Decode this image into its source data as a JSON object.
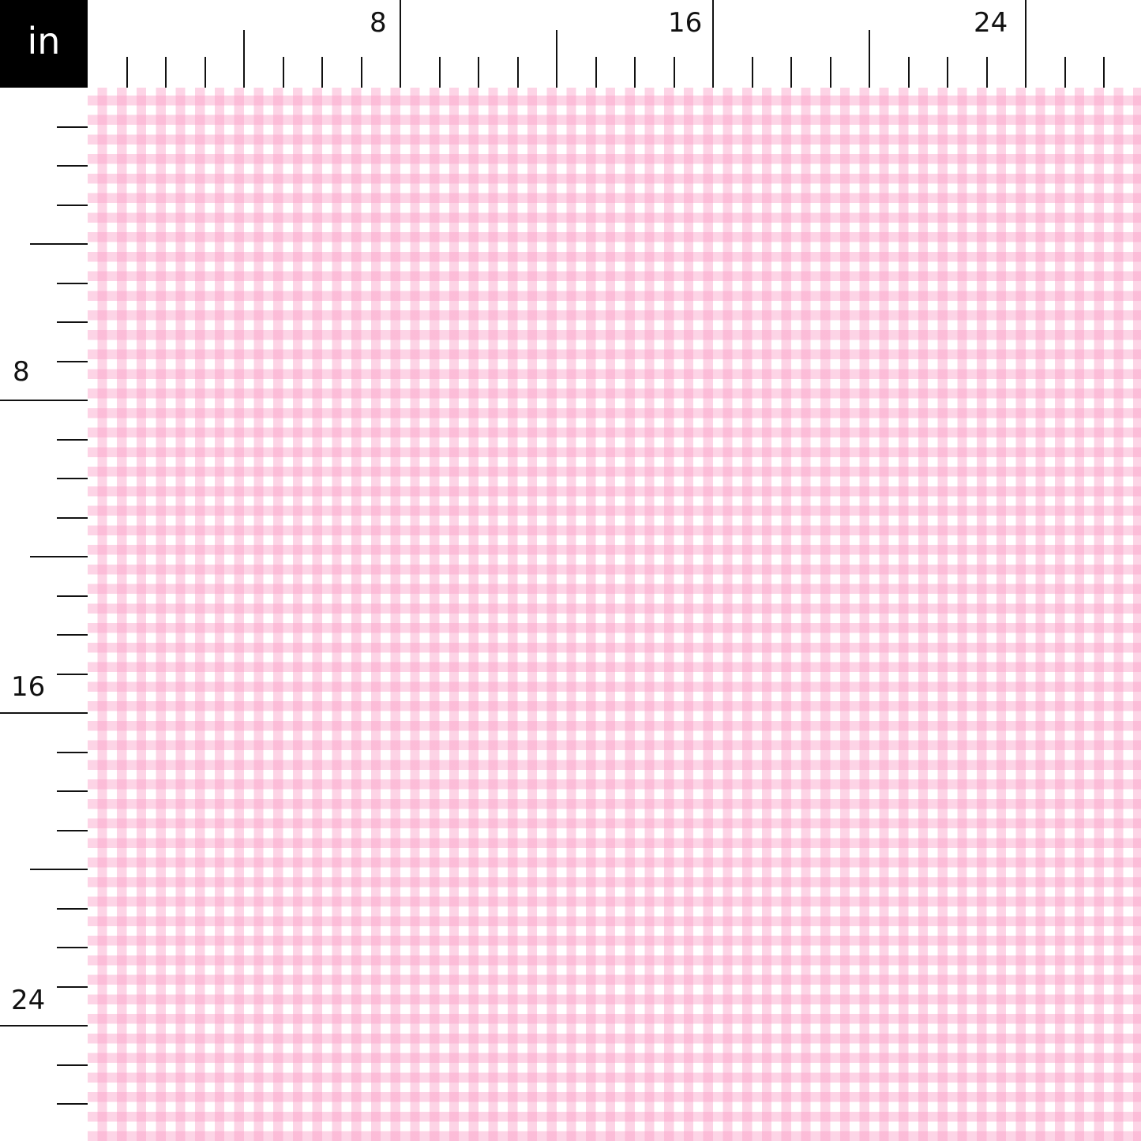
{
  "unit_label": "in",
  "ruler": {
    "top_labels": [
      "8",
      "16",
      "24"
    ],
    "left_labels": [
      "8",
      "16",
      "24"
    ],
    "max_inches": 27
  },
  "fabric": {
    "pattern": "gingham",
    "colors": {
      "stripe": "#fcc6de",
      "cross": "#fbb3d3",
      "ground": "#ffffff"
    }
  }
}
